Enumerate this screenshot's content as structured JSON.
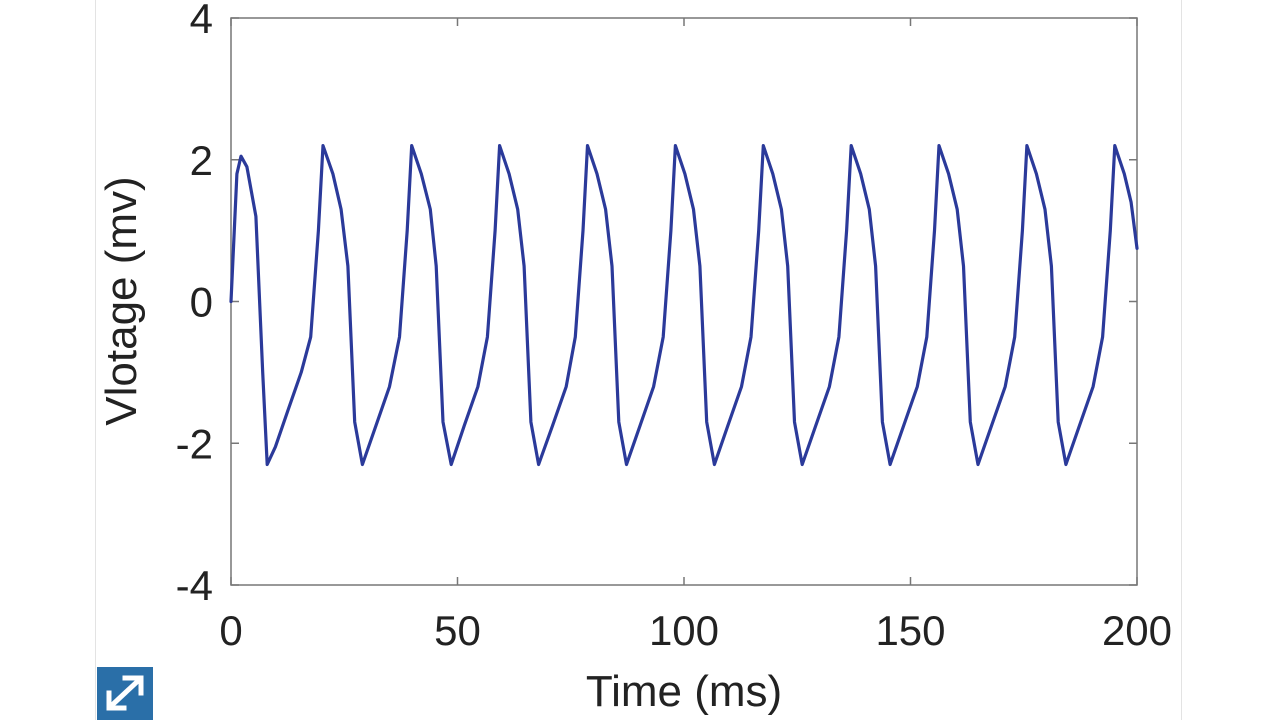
{
  "chart_data": {
    "type": "line",
    "title": "",
    "xlabel": "Time (ms)",
    "ylabel": "Vlotage (mv)",
    "xlim": [
      0,
      200
    ],
    "ylim": [
      -4,
      4
    ],
    "xticks": [
      0,
      50,
      100,
      150,
      200
    ],
    "xtick_labels": [
      "0",
      "50",
      "100",
      "150",
      "200"
    ],
    "yticks": [
      4,
      2,
      0,
      -2,
      -4
    ],
    "ytick_labels": [
      "4",
      "2",
      "0",
      "-2",
      "-4"
    ],
    "grid": false,
    "legend": "none",
    "series": [
      {
        "color": "#2b3a9a",
        "x": [
          0,
          1.3,
          2.2,
          3.5,
          5.5,
          7.0,
          8.0,
          9.8,
          12.5,
          15.5,
          17.6,
          19.3,
          20.3,
          22.5,
          24.3,
          25.8,
          27.3,
          29.0,
          32.0,
          35.0,
          37.2,
          38.9,
          39.9,
          42.0,
          44.0,
          45.3,
          46.8,
          48.6,
          51.5,
          54.5,
          56.6,
          58.3,
          59.3,
          61.4,
          63.3,
          64.7,
          66.2,
          67.9,
          71.0,
          74.0,
          76.0,
          77.7,
          78.7,
          80.8,
          82.7,
          84.1,
          85.6,
          87.3,
          90.3,
          93.3,
          95.4,
          97.1,
          98.1,
          100.2,
          102.1,
          103.5,
          105.0,
          106.7,
          109.7,
          112.7,
          114.8,
          116.5,
          117.5,
          119.6,
          121.5,
          122.9,
          124.4,
          126.1,
          129.1,
          132.1,
          134.2,
          135.9,
          136.9,
          139.0,
          140.9,
          142.3,
          143.8,
          145.5,
          148.5,
          151.5,
          153.6,
          155.3,
          156.3,
          158.4,
          160.3,
          161.7,
          163.2,
          164.9,
          167.9,
          170.9,
          173.0,
          174.7,
          175.7,
          177.8,
          179.7,
          181.1,
          182.6,
          184.3,
          187.3,
          190.3,
          192.4,
          194.1,
          195.1,
          197.2,
          198.7,
          200.0
        ],
        "y": [
          0.0,
          1.8,
          2.05,
          1.9,
          1.2,
          -1.0,
          -2.3,
          -2.05,
          -1.55,
          -1.0,
          -0.5,
          1.0,
          2.2,
          1.8,
          1.3,
          0.5,
          -1.7,
          -2.3,
          -1.75,
          -1.2,
          -0.5,
          1.0,
          2.2,
          1.8,
          1.3,
          0.5,
          -1.7,
          -2.3,
          -1.75,
          -1.2,
          -0.5,
          1.0,
          2.2,
          1.8,
          1.3,
          0.5,
          -1.7,
          -2.3,
          -1.75,
          -1.2,
          -0.5,
          1.0,
          2.2,
          1.8,
          1.3,
          0.5,
          -1.7,
          -2.3,
          -1.75,
          -1.2,
          -0.5,
          1.0,
          2.2,
          1.8,
          1.3,
          0.5,
          -1.7,
          -2.3,
          -1.75,
          -1.2,
          -0.5,
          1.0,
          2.2,
          1.8,
          1.3,
          0.5,
          -1.7,
          -2.3,
          -1.75,
          -1.2,
          -0.5,
          1.0,
          2.2,
          1.8,
          1.3,
          0.5,
          -1.7,
          -2.3,
          -1.75,
          -1.2,
          -0.5,
          1.0,
          2.2,
          1.8,
          1.3,
          0.5,
          -1.7,
          -2.3,
          -1.75,
          -1.2,
          -0.5,
          1.0,
          2.2,
          1.8,
          1.3,
          0.5,
          -1.7,
          -2.3,
          -1.75,
          -1.2,
          -0.5,
          1.0,
          2.2,
          1.8,
          1.4,
          0.75
        ]
      }
    ]
  },
  "expand_button": {
    "icon": "expand-arrows-icon",
    "color": "#2a6fa8"
  }
}
